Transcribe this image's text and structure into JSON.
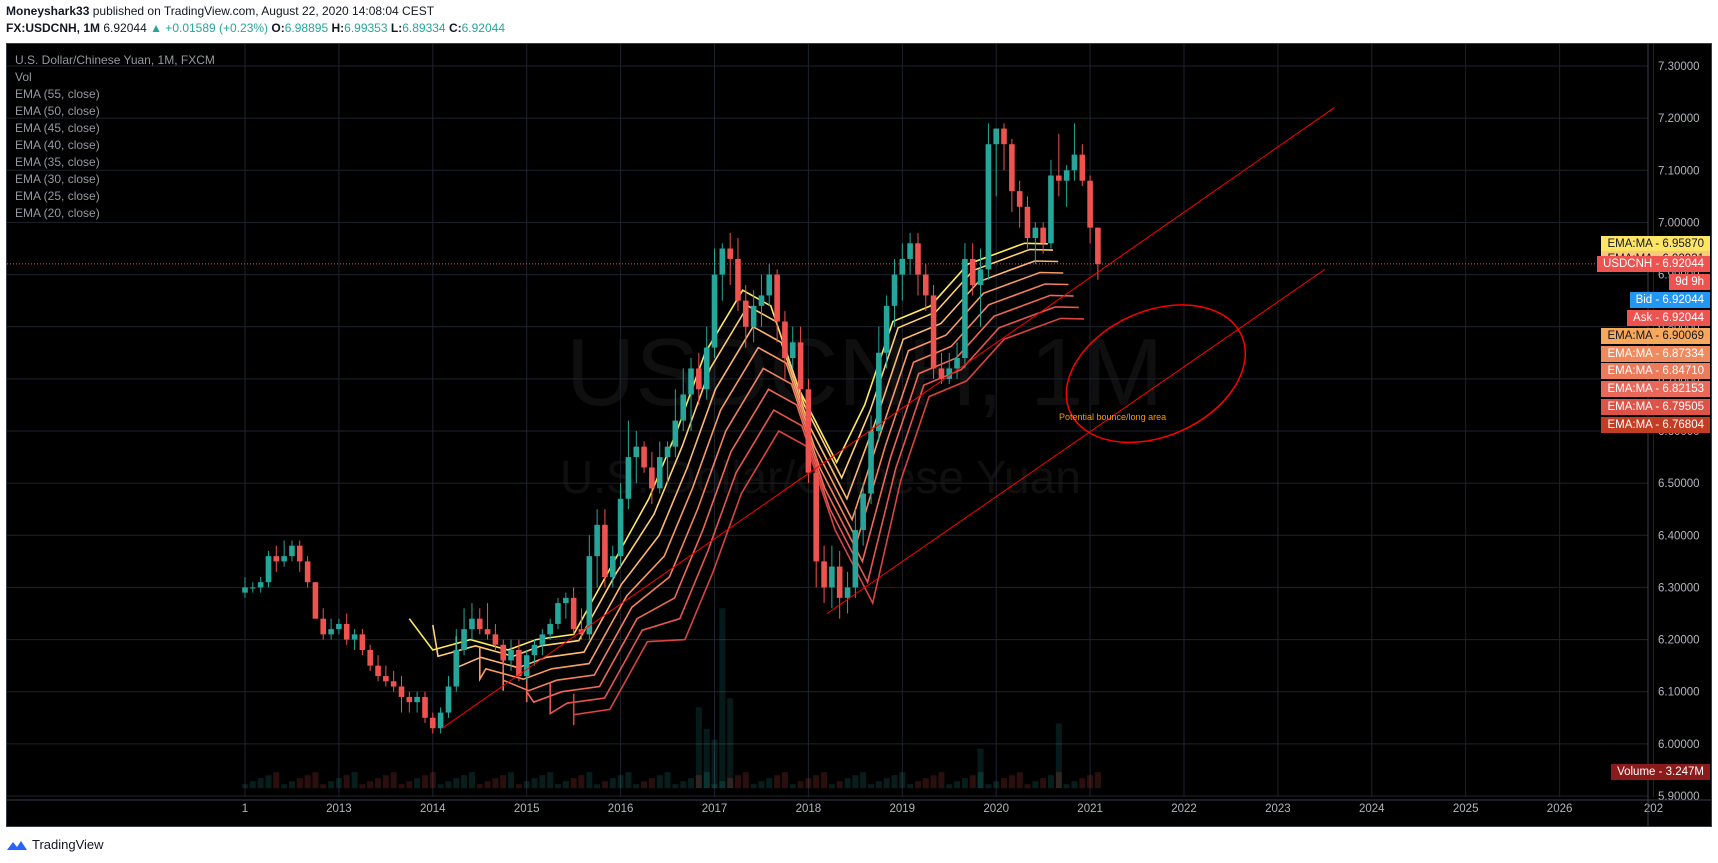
{
  "header": {
    "line1_author": "Moneyshark33",
    "line1_rest": "published on TradingView.com, August 22, 2020 14:08:04 CEST",
    "symbol_label": "FX:USDCNH, 1M",
    "last": "6.92044",
    "change": "▲ +0.01589 (+0.23%)",
    "o_label": "O:",
    "o_value": "6.98895",
    "h_label": "H:",
    "h_value": "6.99353",
    "l_label": "L:",
    "l_value": "6.89334",
    "c_label": "C:",
    "c_value": "6.92044"
  },
  "legend": {
    "title": "U.S. Dollar/Chinese Yuan, 1M, FXCM",
    "items": [
      "Vol",
      "EMA (55, close)",
      "EMA (50, close)",
      "EMA (45, close)",
      "EMA (40, close)",
      "EMA (35, close)",
      "EMA (30, close)",
      "EMA (25, close)",
      "EMA (20, close)"
    ]
  },
  "watermark": {
    "symbol": "USDCNH, 1M",
    "name": "U.S. Dollar/Chinese Yuan"
  },
  "annotation": {
    "text": "Potential bounce/long area",
    "color": "#ff9800"
  },
  "price_tags": [
    {
      "label": "EMA:MA",
      "value": "6.95870",
      "price": 6.9587,
      "bg": "#ffe566",
      "fg": "#131722"
    },
    {
      "label": "EMA:MA",
      "value": "6.92931",
      "price": 6.9293,
      "bg": "#f9c97e",
      "fg": "#131722"
    },
    {
      "label": "USDCNH",
      "value": "6.92044",
      "price": 6.9204,
      "bg": "#ef5350",
      "fg": "#ffffff"
    },
    {
      "label": "",
      "value": "9d 9h",
      "price": 6.8855,
      "bg": "#ef5350",
      "fg": "#ffffff"
    },
    {
      "label": "Bid",
      "value": "6.92044",
      "price": 6.851,
      "bg": "#2196f3",
      "fg": "#ffffff"
    },
    {
      "label": "Ask",
      "value": "6.92044",
      "price": 6.817,
      "bg": "#ef5350",
      "fg": "#ffffff"
    },
    {
      "label": "EMA:MA",
      "value": "6.90069",
      "price": 6.7827,
      "bg": "#f7a85a",
      "fg": "#131722"
    },
    {
      "label": "EMA:MA",
      "value": "6.87334",
      "price": 6.7485,
      "bg": "#f08a5d",
      "fg": "#ffffff"
    },
    {
      "label": "EMA:MA",
      "value": "6.84710",
      "price": 6.7143,
      "bg": "#ec7b5c",
      "fg": "#ffffff"
    },
    {
      "label": "EMA:MA",
      "value": "6.82153",
      "price": 6.6801,
      "bg": "#e8685a",
      "fg": "#ffffff"
    },
    {
      "label": "EMA:MA",
      "value": "6.79505",
      "price": 6.6459,
      "bg": "#de5348",
      "fg": "#ffffff"
    },
    {
      "label": "EMA:MA",
      "value": "6.76804",
      "price": 6.6117,
      "bg": "#c43d22",
      "fg": "#ffffff"
    },
    {
      "label": "Volume",
      "value": "3.247M",
      "price": 5.9466,
      "bg": "#8b1a1a",
      "fg": "#ffffff"
    }
  ],
  "footer": {
    "brand": "TradingView"
  },
  "chart_data": {
    "type": "candlestick",
    "title": "U.S. Dollar/Chinese Yuan, 1M, FXCM",
    "x_ticks": [
      {
        "label": "1",
        "t": 2012.0
      },
      {
        "label": "2013",
        "t": 2013.0
      },
      {
        "label": "2014",
        "t": 2014.0
      },
      {
        "label": "2015",
        "t": 2015.0
      },
      {
        "label": "2016",
        "t": 2016.0
      },
      {
        "label": "2017",
        "t": 2017.0
      },
      {
        "label": "2018",
        "t": 2018.0
      },
      {
        "label": "2019",
        "t": 2019.0
      },
      {
        "label": "2020",
        "t": 2020.0
      },
      {
        "label": "2021",
        "t": 2021.0
      },
      {
        "label": "2022",
        "t": 2022.0
      },
      {
        "label": "2023",
        "t": 2023.0
      },
      {
        "label": "2024",
        "t": 2024.0
      },
      {
        "label": "2025",
        "t": 2025.0
      },
      {
        "label": "2026",
        "t": 2026.0
      },
      {
        "label": "202",
        "t": 2027.0
      }
    ],
    "y_ticks": [
      {
        "label": "7.30000",
        "v": 7.3
      },
      {
        "label": "7.20000",
        "v": 7.2
      },
      {
        "label": "7.10000",
        "v": 7.1
      },
      {
        "label": "7.00000",
        "v": 7.0
      },
      {
        "label": "6.90000",
        "v": 6.9
      },
      {
        "label": "6.80000",
        "v": 6.8
      },
      {
        "label": "6.70000",
        "v": 6.7
      },
      {
        "label": "6.60000",
        "v": 6.6
      },
      {
        "label": "6.50000",
        "v": 6.5
      },
      {
        "label": "6.40000",
        "v": 6.4
      },
      {
        "label": "6.30000",
        "v": 6.3
      },
      {
        "label": "6.20000",
        "v": 6.2
      },
      {
        "label": "6.10000",
        "v": 6.1
      },
      {
        "label": "6.00000",
        "v": 6.0
      },
      {
        "label": "5.90000",
        "v": 5.9
      }
    ],
    "ylim": [
      5.89,
      7.33
    ],
    "xlim": [
      2010.25,
      2027.0
    ],
    "grid": true,
    "current_price": 6.92044,
    "trendlines": [
      {
        "t1": 2014.1,
        "v1": 6.03,
        "t2": 2023.6,
        "v2": 7.22
      },
      {
        "t1": 2018.2,
        "v1": 6.25,
        "t2": 2023.5,
        "v2": 6.91
      }
    ],
    "ellipse": {
      "t": 2021.7,
      "v": 6.71,
      "rt": 1.0,
      "rv": 0.12
    },
    "ema_colors": [
      "#ffea5c",
      "#ffd073",
      "#fdb870",
      "#f99a66",
      "#f5805f",
      "#ef6858",
      "#e55550",
      "#d84440"
    ],
    "ema_offsets": [
      0.0,
      0.0,
      -0.01,
      -0.02,
      -0.03,
      -0.04,
      -0.05,
      -0.06
    ],
    "ema_path_top": [
      [
        2013.75,
        6.24
      ],
      [
        2014.0,
        6.18
      ],
      [
        2014.4,
        6.2
      ],
      [
        2014.8,
        6.18
      ],
      [
        2015.1,
        6.2
      ],
      [
        2015.5,
        6.21
      ],
      [
        2015.9,
        6.34
      ],
      [
        2016.3,
        6.47
      ],
      [
        2016.6,
        6.6
      ],
      [
        2016.9,
        6.75
      ],
      [
        2017.3,
        6.87
      ],
      [
        2017.6,
        6.84
      ],
      [
        2017.9,
        6.68
      ],
      [
        2018.3,
        6.54
      ],
      [
        2018.6,
        6.65
      ],
      [
        2018.9,
        6.81
      ],
      [
        2019.3,
        6.84
      ],
      [
        2019.7,
        6.92
      ],
      [
        2020.0,
        6.94
      ],
      [
        2020.3,
        6.96
      ],
      [
        2020.55,
        6.959
      ]
    ],
    "candles": [
      {
        "t": 2012.0,
        "o": 6.29,
        "h": 6.32,
        "l": 6.28,
        "c": 6.3
      },
      {
        "t": 2012.083,
        "o": 6.3,
        "h": 6.31,
        "l": 6.29,
        "c": 6.3
      },
      {
        "t": 2012.167,
        "o": 6.3,
        "h": 6.32,
        "l": 6.29,
        "c": 6.31
      },
      {
        "t": 2012.25,
        "o": 6.31,
        "h": 6.37,
        "l": 6.3,
        "c": 6.36
      },
      {
        "t": 2012.333,
        "o": 6.36,
        "h": 6.38,
        "l": 6.33,
        "c": 6.35
      },
      {
        "t": 2012.417,
        "o": 6.35,
        "h": 6.39,
        "l": 6.34,
        "c": 6.36
      },
      {
        "t": 2012.5,
        "o": 6.36,
        "h": 6.39,
        "l": 6.35,
        "c": 6.38
      },
      {
        "t": 2012.583,
        "o": 6.38,
        "h": 6.39,
        "l": 6.33,
        "c": 6.35
      },
      {
        "t": 2012.667,
        "o": 6.35,
        "h": 6.36,
        "l": 6.3,
        "c": 6.31
      },
      {
        "t": 2012.75,
        "o": 6.31,
        "h": 6.31,
        "l": 6.24,
        "c": 6.24
      },
      {
        "t": 2012.833,
        "o": 6.24,
        "h": 6.26,
        "l": 6.2,
        "c": 6.21
      },
      {
        "t": 2012.917,
        "o": 6.21,
        "h": 6.24,
        "l": 6.2,
        "c": 6.22
      },
      {
        "t": 2013.0,
        "o": 6.22,
        "h": 6.24,
        "l": 6.21,
        "c": 6.23
      },
      {
        "t": 2013.083,
        "o": 6.23,
        "h": 6.25,
        "l": 6.19,
        "c": 6.2
      },
      {
        "t": 2013.167,
        "o": 6.2,
        "h": 6.22,
        "l": 6.18,
        "c": 6.21
      },
      {
        "t": 2013.25,
        "o": 6.21,
        "h": 6.22,
        "l": 6.17,
        "c": 6.18
      },
      {
        "t": 2013.333,
        "o": 6.18,
        "h": 6.19,
        "l": 6.14,
        "c": 6.15
      },
      {
        "t": 2013.417,
        "o": 6.15,
        "h": 6.17,
        "l": 6.12,
        "c": 6.13
      },
      {
        "t": 2013.5,
        "o": 6.13,
        "h": 6.15,
        "l": 6.11,
        "c": 6.12
      },
      {
        "t": 2013.583,
        "o": 6.12,
        "h": 6.14,
        "l": 6.1,
        "c": 6.11
      },
      {
        "t": 2013.667,
        "o": 6.11,
        "h": 6.13,
        "l": 6.06,
        "c": 6.09
      },
      {
        "t": 2013.75,
        "o": 6.09,
        "h": 6.1,
        "l": 6.06,
        "c": 6.08
      },
      {
        "t": 2013.833,
        "o": 6.08,
        "h": 6.1,
        "l": 6.06,
        "c": 6.09
      },
      {
        "t": 2013.917,
        "o": 6.09,
        "h": 6.1,
        "l": 6.04,
        "c": 6.05
      },
      {
        "t": 2014.0,
        "o": 6.05,
        "h": 6.06,
        "l": 6.02,
        "c": 6.03
      },
      {
        "t": 2014.083,
        "o": 6.03,
        "h": 6.07,
        "l": 6.02,
        "c": 6.06
      },
      {
        "t": 2014.167,
        "o": 6.06,
        "h": 6.13,
        "l": 6.05,
        "c": 6.11
      },
      {
        "t": 2014.25,
        "o": 6.11,
        "h": 6.22,
        "l": 6.1,
        "c": 6.18
      },
      {
        "t": 2014.333,
        "o": 6.18,
        "h": 6.26,
        "l": 6.17,
        "c": 6.22
      },
      {
        "t": 2014.417,
        "o": 6.22,
        "h": 6.27,
        "l": 6.2,
        "c": 6.24
      },
      {
        "t": 2014.5,
        "o": 6.24,
        "h": 6.26,
        "l": 6.21,
        "c": 6.22
      },
      {
        "t": 2014.583,
        "o": 6.22,
        "h": 6.27,
        "l": 6.2,
        "c": 6.21
      },
      {
        "t": 2014.667,
        "o": 6.21,
        "h": 6.23,
        "l": 6.18,
        "c": 6.19
      },
      {
        "t": 2014.75,
        "o": 6.19,
        "h": 6.2,
        "l": 6.14,
        "c": 6.16
      },
      {
        "t": 2014.833,
        "o": 6.16,
        "h": 6.2,
        "l": 6.14,
        "c": 6.18
      },
      {
        "t": 2014.917,
        "o": 6.18,
        "h": 6.2,
        "l": 6.12,
        "c": 6.13
      },
      {
        "t": 2015.0,
        "o": 6.13,
        "h": 6.18,
        "l": 6.12,
        "c": 6.17
      },
      {
        "t": 2015.083,
        "o": 6.17,
        "h": 6.2,
        "l": 6.15,
        "c": 6.19
      },
      {
        "t": 2015.167,
        "o": 6.19,
        "h": 6.22,
        "l": 6.17,
        "c": 6.21
      },
      {
        "t": 2015.25,
        "o": 6.21,
        "h": 6.24,
        "l": 6.2,
        "c": 6.23
      },
      {
        "t": 2015.333,
        "o": 6.23,
        "h": 6.28,
        "l": 6.22,
        "c": 6.27
      },
      {
        "t": 2015.417,
        "o": 6.27,
        "h": 6.29,
        "l": 6.24,
        "c": 6.28
      },
      {
        "t": 2015.5,
        "o": 6.28,
        "h": 6.3,
        "l": 6.21,
        "c": 6.22
      },
      {
        "t": 2015.583,
        "o": 6.22,
        "h": 6.26,
        "l": 6.2,
        "c": 6.21
      },
      {
        "t": 2015.667,
        "o": 6.21,
        "h": 6.4,
        "l": 6.2,
        "c": 6.36
      },
      {
        "t": 2015.75,
        "o": 6.36,
        "h": 6.45,
        "l": 6.3,
        "c": 6.42
      },
      {
        "t": 2015.833,
        "o": 6.42,
        "h": 6.45,
        "l": 6.3,
        "c": 6.32
      },
      {
        "t": 2015.917,
        "o": 6.32,
        "h": 6.38,
        "l": 6.3,
        "c": 6.36
      },
      {
        "t": 2016.0,
        "o": 6.36,
        "h": 6.5,
        "l": 6.34,
        "c": 6.47
      },
      {
        "t": 2016.083,
        "o": 6.47,
        "h": 6.62,
        "l": 6.45,
        "c": 6.55
      },
      {
        "t": 2016.167,
        "o": 6.55,
        "h": 6.6,
        "l": 6.5,
        "c": 6.57
      },
      {
        "t": 2016.25,
        "o": 6.57,
        "h": 6.58,
        "l": 6.52,
        "c": 6.53
      },
      {
        "t": 2016.333,
        "o": 6.53,
        "h": 6.56,
        "l": 6.46,
        "c": 6.49
      },
      {
        "t": 2016.417,
        "o": 6.49,
        "h": 6.58,
        "l": 6.48,
        "c": 6.55
      },
      {
        "t": 2016.5,
        "o": 6.55,
        "h": 6.58,
        "l": 6.5,
        "c": 6.57
      },
      {
        "t": 2016.583,
        "o": 6.57,
        "h": 6.68,
        "l": 6.55,
        "c": 6.62
      },
      {
        "t": 2016.667,
        "o": 6.62,
        "h": 6.72,
        "l": 6.6,
        "c": 6.67
      },
      {
        "t": 2016.75,
        "o": 6.67,
        "h": 6.74,
        "l": 6.6,
        "c": 6.72
      },
      {
        "t": 2016.833,
        "o": 6.72,
        "h": 6.75,
        "l": 6.65,
        "c": 6.68
      },
      {
        "t": 2016.917,
        "o": 6.68,
        "h": 6.8,
        "l": 6.66,
        "c": 6.76
      },
      {
        "t": 2017.0,
        "o": 6.76,
        "h": 6.95,
        "l": 6.74,
        "c": 6.9
      },
      {
        "t": 2017.083,
        "o": 6.9,
        "h": 6.96,
        "l": 6.85,
        "c": 6.95
      },
      {
        "t": 2017.167,
        "o": 6.95,
        "h": 6.98,
        "l": 6.88,
        "c": 6.93
      },
      {
        "t": 2017.25,
        "o": 6.93,
        "h": 6.97,
        "l": 6.83,
        "c": 6.85
      },
      {
        "t": 2017.333,
        "o": 6.85,
        "h": 6.88,
        "l": 6.76,
        "c": 6.8
      },
      {
        "t": 2017.417,
        "o": 6.8,
        "h": 6.87,
        "l": 6.77,
        "c": 6.84
      },
      {
        "t": 2017.5,
        "o": 6.84,
        "h": 6.9,
        "l": 6.8,
        "c": 6.86
      },
      {
        "t": 2017.583,
        "o": 6.86,
        "h": 6.92,
        "l": 6.84,
        "c": 6.9
      },
      {
        "t": 2017.667,
        "o": 6.9,
        "h": 6.91,
        "l": 6.77,
        "c": 6.81
      },
      {
        "t": 2017.75,
        "o": 6.81,
        "h": 6.83,
        "l": 6.7,
        "c": 6.74
      },
      {
        "t": 2017.833,
        "o": 6.74,
        "h": 6.8,
        "l": 6.72,
        "c": 6.77
      },
      {
        "t": 2017.917,
        "o": 6.77,
        "h": 6.8,
        "l": 6.65,
        "c": 6.68
      },
      {
        "t": 2018.0,
        "o": 6.68,
        "h": 6.7,
        "l": 6.5,
        "c": 6.52
      },
      {
        "t": 2018.083,
        "o": 6.52,
        "h": 6.55,
        "l": 6.3,
        "c": 6.35
      },
      {
        "t": 2018.167,
        "o": 6.35,
        "h": 6.38,
        "l": 6.27,
        "c": 6.3
      },
      {
        "t": 2018.25,
        "o": 6.3,
        "h": 6.38,
        "l": 6.26,
        "c": 6.34
      },
      {
        "t": 2018.333,
        "o": 6.34,
        "h": 6.37,
        "l": 6.24,
        "c": 6.28
      },
      {
        "t": 2018.417,
        "o": 6.28,
        "h": 6.33,
        "l": 6.25,
        "c": 6.3
      },
      {
        "t": 2018.5,
        "o": 6.3,
        "h": 6.45,
        "l": 6.28,
        "c": 6.41
      },
      {
        "t": 2018.583,
        "o": 6.41,
        "h": 6.5,
        "l": 6.38,
        "c": 6.48
      },
      {
        "t": 2018.667,
        "o": 6.48,
        "h": 6.63,
        "l": 6.46,
        "c": 6.6
      },
      {
        "t": 2018.75,
        "o": 6.6,
        "h": 6.8,
        "l": 6.58,
        "c": 6.75
      },
      {
        "t": 2018.833,
        "o": 6.75,
        "h": 6.86,
        "l": 6.72,
        "c": 6.84
      },
      {
        "t": 2018.917,
        "o": 6.84,
        "h": 6.93,
        "l": 6.8,
        "c": 6.9
      },
      {
        "t": 2019.0,
        "o": 6.9,
        "h": 6.96,
        "l": 6.85,
        "c": 6.93
      },
      {
        "t": 2019.083,
        "o": 6.93,
        "h": 6.98,
        "l": 6.9,
        "c": 6.96
      },
      {
        "t": 2019.167,
        "o": 6.96,
        "h": 6.98,
        "l": 6.86,
        "c": 6.9
      },
      {
        "t": 2019.25,
        "o": 6.9,
        "h": 6.92,
        "l": 6.83,
        "c": 6.86
      },
      {
        "t": 2019.333,
        "o": 6.86,
        "h": 6.88,
        "l": 6.7,
        "c": 6.72
      },
      {
        "t": 2019.417,
        "o": 6.72,
        "h": 6.75,
        "l": 6.69,
        "c": 6.7
      },
      {
        "t": 2019.5,
        "o": 6.7,
        "h": 6.75,
        "l": 6.69,
        "c": 6.72
      },
      {
        "t": 2019.583,
        "o": 6.72,
        "h": 6.77,
        "l": 6.7,
        "c": 6.74
      },
      {
        "t": 2019.667,
        "o": 6.74,
        "h": 6.96,
        "l": 6.72,
        "c": 6.93
      },
      {
        "t": 2019.75,
        "o": 6.93,
        "h": 6.96,
        "l": 6.86,
        "c": 6.88
      },
      {
        "t": 2019.833,
        "o": 6.88,
        "h": 6.95,
        "l": 6.8,
        "c": 6.91
      },
      {
        "t": 2019.917,
        "o": 6.91,
        "h": 7.19,
        "l": 6.89,
        "c": 7.15
      },
      {
        "t": 2020.0,
        "o": 7.15,
        "h": 7.18,
        "l": 7.05,
        "c": 7.18
      },
      {
        "t": 2020.083,
        "o": 7.18,
        "h": 7.19,
        "l": 7.1,
        "c": 7.15
      },
      {
        "t": 2020.167,
        "o": 7.15,
        "h": 7.16,
        "l": 7.02,
        "c": 7.06
      },
      {
        "t": 2020.25,
        "o": 7.06,
        "h": 7.08,
        "l": 6.99,
        "c": 7.03
      },
      {
        "t": 2020.333,
        "o": 7.03,
        "h": 7.05,
        "l": 6.95,
        "c": 6.97
      },
      {
        "t": 2020.417,
        "o": 6.97,
        "h": 7.0,
        "l": 6.92,
        "c": 6.99
      },
      {
        "t": 2020.5,
        "o": 6.99,
        "h": 7.0,
        "l": 6.94,
        "c": 6.96
      },
      {
        "t": 2020.583,
        "o": 6.96,
        "h": 7.12,
        "l": 6.95,
        "c": 7.09
      },
      {
        "t": 2020.667,
        "o": 7.09,
        "h": 7.17,
        "l": 7.05,
        "c": 7.08
      },
      {
        "t": 2020.75,
        "o": 7.08,
        "h": 7.11,
        "l": 7.03,
        "c": 7.1
      },
      {
        "t": 2020.833,
        "o": 7.1,
        "h": 7.19,
        "l": 7.08,
        "c": 7.13
      },
      {
        "t": 2020.917,
        "o": 7.13,
        "h": 7.15,
        "l": 7.07,
        "c": 7.08
      },
      {
        "t": 2021.0,
        "o": 7.08,
        "h": 7.09,
        "l": 6.96,
        "c": 6.99
      },
      {
        "t": 2021.083,
        "o": 6.99,
        "h": 6.99,
        "l": 6.89,
        "c": 6.92
      }
    ],
    "volume": [
      {
        "t": 2016.833,
        "v": 0.45
      },
      {
        "t": 2016.917,
        "v": 0.33
      },
      {
        "t": 2017.0,
        "v": 0.27
      },
      {
        "t": 2017.083,
        "v": 1.0
      },
      {
        "t": 2017.167,
        "v": 0.5
      },
      {
        "t": 2019.833,
        "v": 0.22
      },
      {
        "t": 2020.667,
        "v": 0.36
      }
    ]
  }
}
